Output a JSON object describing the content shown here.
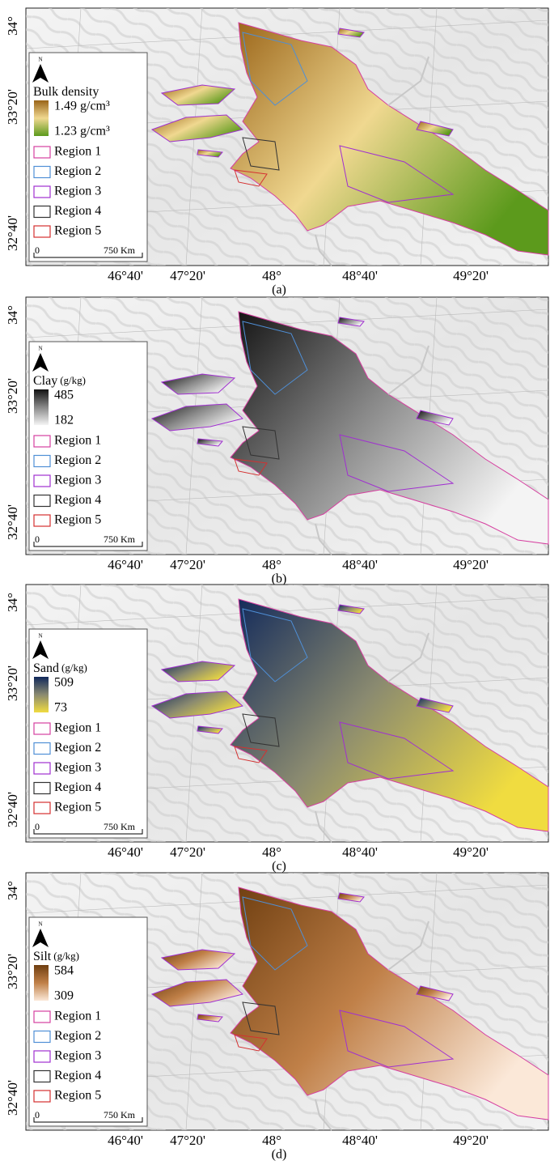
{
  "panels": [
    {
      "legend": {
        "north": "N",
        "title": "Bulk density",
        "max": "1.49 g/cm³",
        "min": "1.23 g/cm³",
        "colors": [
          "#9a6418",
          "#f0d890",
          "#5c9a1c"
        ],
        "regions": [
          "Region 1",
          "Region 2",
          "Region 3",
          "Region 4",
          "Region 5"
        ],
        "scale": [
          "0",
          "750 Km"
        ]
      },
      "latitudes": [
        "34°",
        "33°20'",
        "32°40'"
      ],
      "longitudes": [
        "46°40'",
        "47°20'",
        "48°",
        "48°40'",
        "49°20'"
      ],
      "caption": "(a)"
    },
    {
      "legend": {
        "north": "N",
        "title": "Clay",
        "unit": "(g/kg)",
        "max": "485",
        "min": "182",
        "colors": [
          "#111111",
          "#888888",
          "#f4f4f4"
        ],
        "regions": [
          "Region 1",
          "Region 2",
          "Region 3",
          "Region 4",
          "Region 5"
        ],
        "scale": [
          "0",
          "750 Km"
        ]
      },
      "latitudes": [
        "34°",
        "33°20'",
        "32°40'"
      ],
      "longitudes": [
        "46°40'",
        "47°20'",
        "48°",
        "48°40'",
        "49°20'"
      ],
      "caption": "(b)"
    },
    {
      "legend": {
        "north": "N",
        "title": "Sand",
        "unit": "(g/kg)",
        "max": "509",
        "min": "73",
        "colors": [
          "#10285a",
          "#8a8a70",
          "#f0dc40"
        ],
        "regions": [
          "Region 1",
          "Region 2",
          "Region 3",
          "Region 4",
          "Region 5"
        ],
        "scale": [
          "0",
          "750 Km"
        ]
      },
      "latitudes": [
        "34°",
        "33°20'",
        "32°40'"
      ],
      "longitudes": [
        "46°40'",
        "47°20'",
        "48°",
        "48°40'",
        "49°20'"
      ],
      "caption": "(c)"
    },
    {
      "legend": {
        "north": "N",
        "title": "Silt",
        "unit": "(g/kg)",
        "max": "584",
        "min": "309",
        "colors": [
          "#6e3e10",
          "#c08048",
          "#fbe8d8"
        ],
        "regions": [
          "Region 1",
          "Region 2",
          "Region 3",
          "Region 4",
          "Region 5"
        ],
        "scale": [
          "0",
          "750 Km"
        ]
      },
      "latitudes": [
        "34°",
        "33°20'",
        "32°40'"
      ],
      "longitudes": [
        "46°40'",
        "47°20'",
        "48°",
        "48°40'",
        "49°20'"
      ],
      "caption": "(d)"
    }
  ],
  "region_colors": [
    "#d63fa0",
    "#4f8fd6",
    "#a030d0",
    "#333333",
    "#d43030"
  ]
}
